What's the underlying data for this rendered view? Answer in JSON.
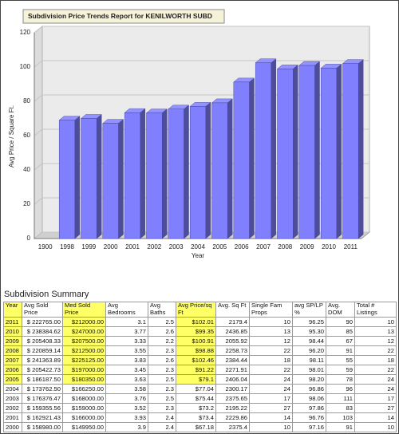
{
  "chart_data": {
    "type": "bar3d",
    "title": "Subdivision Price Trends Report for KENILWORTH SUBD",
    "y_label": "Avg Price / Square Ft.",
    "x_label": "Year",
    "categories": [
      "1900",
      "1998",
      "1999",
      "2000",
      "2001",
      "2002",
      "2003",
      "2004",
      "2005",
      "2006",
      "2007",
      "2008",
      "2009",
      "2010",
      "2011"
    ],
    "values": [
      null,
      69,
      70,
      67.18,
      73.4,
      73.2,
      75.44,
      77.04,
      79.1,
      91.22,
      102.46,
      98.88,
      100.91,
      99.35,
      102.01
    ],
    "color": "#8080ff",
    "ylim": [
      0,
      120
    ],
    "yticks": [
      0,
      20,
      40,
      60,
      80,
      100,
      120
    ],
    "grid": true
  },
  "summary": {
    "title": "Subdivision Summary",
    "headers": [
      "Year",
      "Avg Sold Price",
      "Med Sold Price",
      "Avg Bedrooms",
      "Avg Baths",
      "Avg Price/sq Ft",
      "Avg. Sq Ft",
      "Single Fam Props",
      "avg SP/LP %",
      "Avg. DOM",
      "Total # Listings"
    ],
    "rows": [
      [
        "2011",
        "$ 222765.00",
        "$212000.00",
        "3.1",
        "2.5",
        "$102.01",
        "2179.4",
        "10",
        "96.25",
        "90",
        "10"
      ],
      [
        "2010",
        "$ 238384.62",
        "$247000.00",
        "3.77",
        "2.6",
        "$99.35",
        "2436.85",
        "13",
        "95.30",
        "85",
        "13"
      ],
      [
        "2009",
        "$ 205408.33",
        "$207500.00",
        "3.33",
        "2.2",
        "$100.91",
        "2055.92",
        "12",
        "98.44",
        "67",
        "12"
      ],
      [
        "2008",
        "$ 220859.14",
        "$212500.00",
        "3.55",
        "2.3",
        "$98.88",
        "2258.73",
        "22",
        "96.20",
        "91",
        "22"
      ],
      [
        "2007",
        "$ 241363.89",
        "$225125.00",
        "3.83",
        "2.6",
        "$102.46",
        "2384.44",
        "18",
        "98.11",
        "55",
        "18"
      ],
      [
        "2006",
        "$ 205422.73",
        "$197000.00",
        "3.45",
        "2.3",
        "$91.22",
        "2271.91",
        "22",
        "98.01",
        "59",
        "22"
      ],
      [
        "2005",
        "$ 186187.50",
        "$180350.00",
        "3.63",
        "2.5",
        "$79.1",
        "2406.04",
        "24",
        "98.20",
        "78",
        "24"
      ],
      [
        "2004",
        "$ 173762.50",
        "$166250.00",
        "3.58",
        "2.3",
        "$77.04",
        "2300.17",
        "24",
        "96.86",
        "96",
        "24"
      ],
      [
        "2003",
        "$ 176376.47",
        "$168000.00",
        "3.76",
        "2.5",
        "$75.44",
        "2375.65",
        "17",
        "98.06",
        "111",
        "17"
      ],
      [
        "2002",
        "$ 159355.56",
        "$159000.00",
        "3.52",
        "2.3",
        "$73.2",
        "2195.22",
        "27",
        "97.86",
        "83",
        "27"
      ],
      [
        "2001",
        "$ 162921.43",
        "$166000.00",
        "3.93",
        "2.4",
        "$73.4",
        "2229.86",
        "14",
        "96.76",
        "103",
        "14"
      ],
      [
        "2000",
        "$ 158980.00",
        "$149950.00",
        "3.9",
        "2.4",
        "$67.18",
        "2375.4",
        "10",
        "97.16",
        "91",
        "10"
      ]
    ]
  }
}
